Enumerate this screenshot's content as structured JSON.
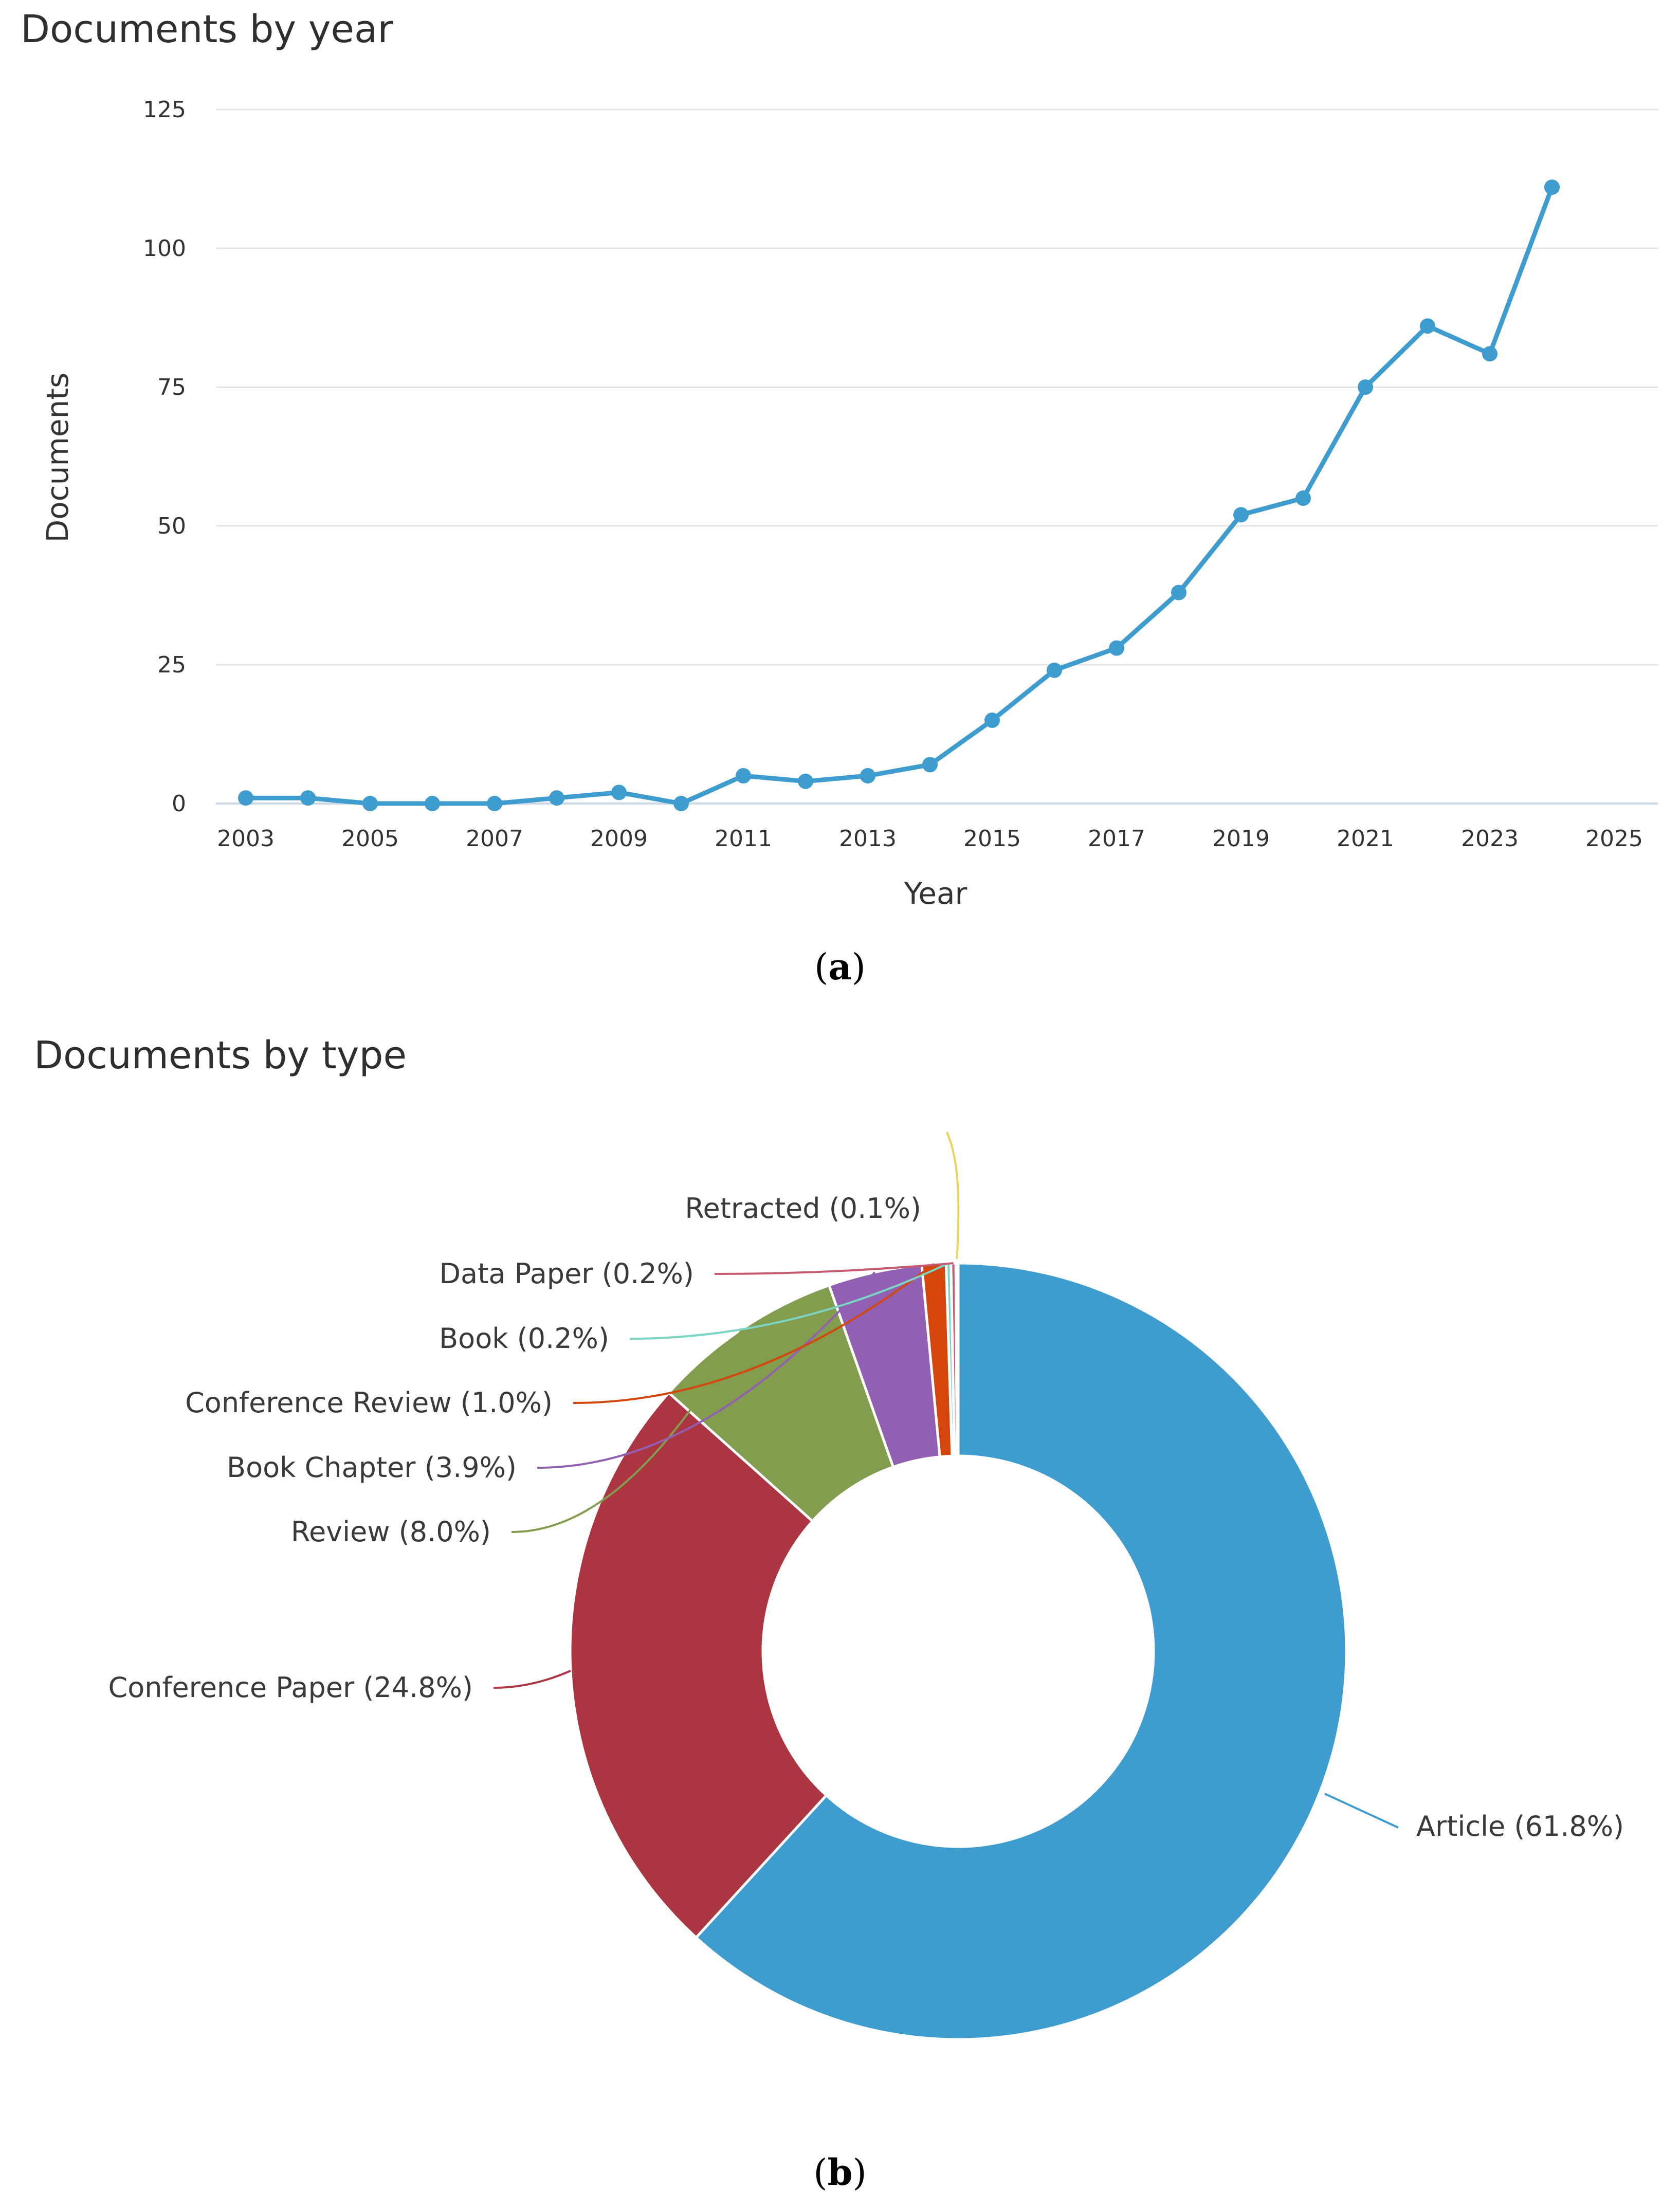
{
  "chart_data": [
    {
      "type": "line",
      "title": "Documents by year",
      "xlabel": "Year",
      "ylabel": "Documents",
      "x_ticks": [
        "2003",
        "2005",
        "2007",
        "2009",
        "2011",
        "2013",
        "2015",
        "2017",
        "2019",
        "2021",
        "2023",
        "2025"
      ],
      "y_ticks": [
        "0",
        "25",
        "50",
        "75",
        "100",
        "125"
      ],
      "xlim": [
        2003,
        2025
      ],
      "ylim": [
        0,
        125
      ],
      "grid": true,
      "caption_letter": "a",
      "colors": {
        "line": "#3f9ccf",
        "grid": "#e3e3e3",
        "axis": "#c8d6e5"
      },
      "series": [
        {
          "x": [
            2003,
            2004,
            2005,
            2006,
            2007,
            2008,
            2009,
            2010,
            2011,
            2012,
            2013,
            2014,
            2015,
            2016,
            2017,
            2018,
            2019,
            2020,
            2021,
            2022,
            2023,
            2024
          ],
          "values": [
            1,
            1,
            0,
            0,
            0,
            1,
            2,
            0,
            5,
            4,
            5,
            7,
            15,
            24,
            28,
            38,
            52,
            55,
            75,
            86,
            81,
            111
          ]
        }
      ]
    },
    {
      "type": "pie",
      "style": "donut",
      "title": "Documents by type",
      "caption_letter": "b",
      "slices": [
        {
          "label": "Article (61.8%)",
          "value": 61.8,
          "color": "#3f9ccf",
          "label_side": "right"
        },
        {
          "label": "Conference Paper (24.8%)",
          "value": 24.8,
          "color": "#ab3540",
          "label_side": "left"
        },
        {
          "label": "Review (8.0%)",
          "value": 8.0,
          "color": "#829d4e",
          "label_side": "left"
        },
        {
          "label": "Book Chapter (3.9%)",
          "value": 3.9,
          "color": "#9160b3",
          "label_side": "left"
        },
        {
          "label": "Conference Review (1.0%)",
          "value": 1.0,
          "color": "#d5460d",
          "label_side": "left"
        },
        {
          "label": "Book (0.2%)",
          "value": 0.2,
          "color": "#7ad6c3",
          "label_side": "left"
        },
        {
          "label": "Data Paper (0.2%)",
          "value": 0.2,
          "color": "#c65a6e",
          "label_side": "left"
        },
        {
          "label": "Retracted (0.1%)",
          "value": 0.1,
          "color": "#e8d65c",
          "label_side": "top"
        }
      ]
    }
  ]
}
